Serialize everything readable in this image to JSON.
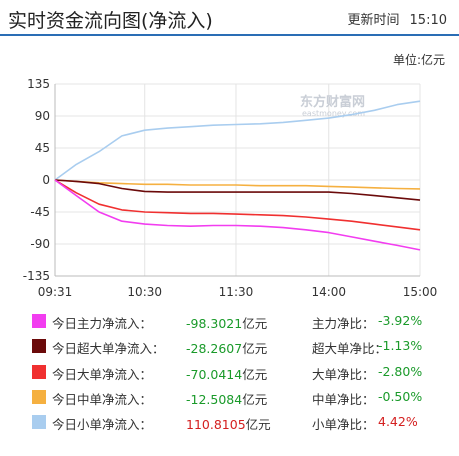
{
  "header": {
    "title": "实时资金流向图(净流入)",
    "update_label": "更新时间",
    "update_time": "15:10"
  },
  "unit_label": "单位:亿元",
  "watermark": {
    "brand": "东方财富网",
    "url": "eastmoney.com"
  },
  "colors": {
    "main": "#f23df0",
    "super_large": "#6b0a0a",
    "large": "#f03030",
    "medium": "#f5b040",
    "small": "#a9cdef",
    "grid": "#e4e4e4",
    "negative_text": "#1a9a2a",
    "positive_text": "#d42020"
  },
  "legend": [
    {
      "label": "今日主力净流入：",
      "value": "-98.3021",
      "unit": "亿元",
      "ratio_label": "主力净比：",
      "ratio": "-3.92%"
    },
    {
      "label": "今日超大单净流入：",
      "value": "-28.2607",
      "unit": "亿元",
      "ratio_label": "超大单净比：",
      "ratio": "-1.13%"
    },
    {
      "label": "今日大单净流入：",
      "value": "-70.0414",
      "unit": "亿元",
      "ratio_label": "大单净比：",
      "ratio": "-2.80%"
    },
    {
      "label": "今日中单净流入：",
      "value": "-12.5084",
      "unit": "亿元",
      "ratio_label": "中单净比：",
      "ratio": "-0.50%"
    },
    {
      "label": "今日小单净流入：",
      "value": "110.8105",
      "unit": "亿元",
      "ratio_label": "小单净比：",
      "ratio": "4.42%"
    }
  ],
  "chart_data": {
    "type": "line",
    "title": "实时资金流向图(净流入)",
    "ylim": [
      -135,
      135
    ],
    "yticks": [
      135,
      90,
      45,
      0,
      -45,
      -90,
      -135
    ],
    "xlim": [
      "09:31",
      "15:00"
    ],
    "xticks": [
      "09:31",
      "10:30",
      "11:30",
      "14:00",
      "15:00"
    ],
    "grid": true,
    "x": [
      "09:31",
      "09:45",
      "10:00",
      "10:15",
      "10:30",
      "10:45",
      "11:00",
      "11:15",
      "11:30",
      "13:15",
      "13:30",
      "13:45",
      "14:00",
      "14:15",
      "14:30",
      "14:45",
      "15:00"
    ],
    "series": [
      {
        "name": "今日主力净流入",
        "color": "#f23df0",
        "values": [
          0,
          -22,
          -45,
          -58,
          -62,
          -64,
          -65,
          -64,
          -64,
          -65,
          -67,
          -70,
          -74,
          -80,
          -86,
          -92,
          -98.3
        ]
      },
      {
        "name": "今日超大单净流入",
        "color": "#6b0a0a",
        "values": [
          0,
          -2,
          -5,
          -12,
          -16,
          -17,
          -17,
          -17,
          -17,
          -17,
          -17,
          -17,
          -17,
          -19,
          -22,
          -25,
          -28.3
        ]
      },
      {
        "name": "今日大单净流入",
        "color": "#f03030",
        "values": [
          0,
          -18,
          -34,
          -42,
          -45,
          -46,
          -47,
          -47,
          -48,
          -49,
          -50,
          -52,
          -55,
          -58,
          -62,
          -66,
          -70.0
        ]
      },
      {
        "name": "今日中单净流入",
        "color": "#f5b040",
        "values": [
          0,
          -2,
          -4,
          -5,
          -6,
          -6,
          -7,
          -7,
          -7,
          -8,
          -8,
          -8,
          -9,
          -10,
          -11,
          -12,
          -12.5
        ]
      },
      {
        "name": "今日小单净流入",
        "color": "#a9cdef",
        "values": [
          0,
          22,
          40,
          62,
          70,
          73,
          75,
          77,
          78,
          79,
          81,
          84,
          87,
          92,
          98,
          106,
          110.8
        ]
      }
    ]
  }
}
